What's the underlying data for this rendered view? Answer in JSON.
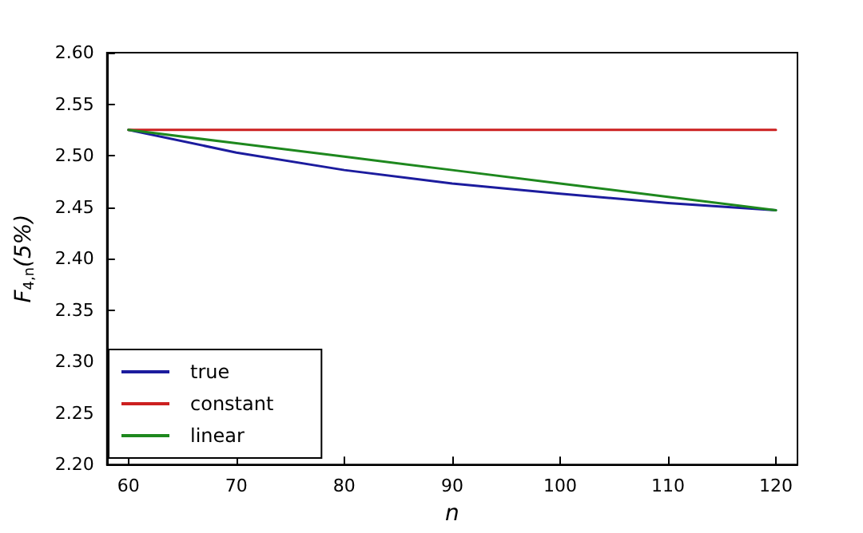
{
  "chart_data": {
    "type": "line",
    "xlabel": "n",
    "ylabel": "F$_{4,n}$(5%)",
    "x": [
      60,
      70,
      80,
      90,
      100,
      110,
      120
    ],
    "series": [
      {
        "name": "true",
        "color": "#1c1c9e",
        "values": [
          2.525,
          2.503,
          2.486,
          2.473,
          2.463,
          2.454,
          2.447
        ]
      },
      {
        "name": "constant",
        "color": "#cc2020",
        "values": [
          2.525,
          2.525,
          2.525,
          2.525,
          2.525,
          2.525,
          2.525
        ]
      },
      {
        "name": "linear",
        "color": "#1e881e",
        "values": [
          2.525,
          2.512,
          2.499,
          2.486,
          2.473,
          2.46,
          2.447
        ]
      }
    ],
    "xlim": [
      58,
      122
    ],
    "xticks": [
      60,
      70,
      80,
      90,
      100,
      110,
      120
    ],
    "ylim": [
      2.2,
      2.6
    ],
    "yticks": [
      {
        "value": 2.2,
        "label": "2.20"
      },
      {
        "value": 2.25,
        "label": "2.25"
      },
      {
        "value": 2.3,
        "label": "2.30"
      },
      {
        "value": 2.35,
        "label": "2.35"
      },
      {
        "value": 2.4,
        "label": "2.40"
      },
      {
        "value": 2.45,
        "label": "2.45"
      },
      {
        "value": 2.5,
        "label": "2.50"
      },
      {
        "value": 2.55,
        "label": "2.55"
      },
      {
        "value": 2.6,
        "label": "2.60"
      }
    ],
    "legend": "bottom left",
    "marker": "none",
    "line_style": "solid",
    "grid": false
  }
}
